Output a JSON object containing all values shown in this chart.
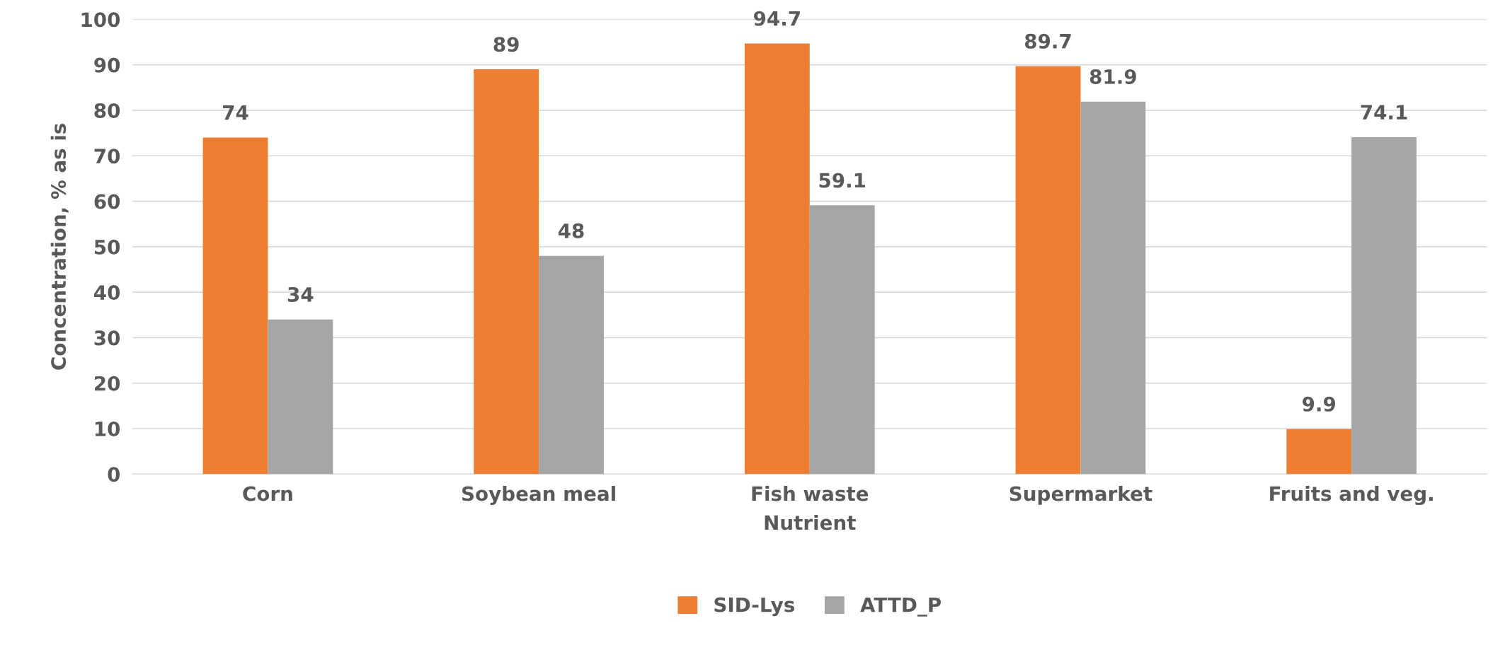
{
  "chart_data": {
    "type": "bar",
    "xlabel": "Nutrient",
    "ylabel": "Concentration, % as is",
    "categories": [
      "Corn",
      "Soybean meal",
      "Fish waste",
      "Supermarket",
      "Fruits and veg."
    ],
    "series": [
      {
        "name": "SID-Lys",
        "color": "#ed7d31",
        "values": [
          74,
          89,
          94.7,
          89.7,
          9.9
        ]
      },
      {
        "name": "ATTD_P",
        "color": "#a5a5a5",
        "values": [
          34,
          48,
          59.1,
          81.9,
          74.1
        ]
      }
    ],
    "ylim": [
      0,
      100
    ],
    "yticks": [
      0,
      10,
      20,
      30,
      40,
      50,
      60,
      70,
      80,
      90,
      100
    ],
    "grid": "y",
    "legend": "bottom",
    "data_labels": true
  }
}
